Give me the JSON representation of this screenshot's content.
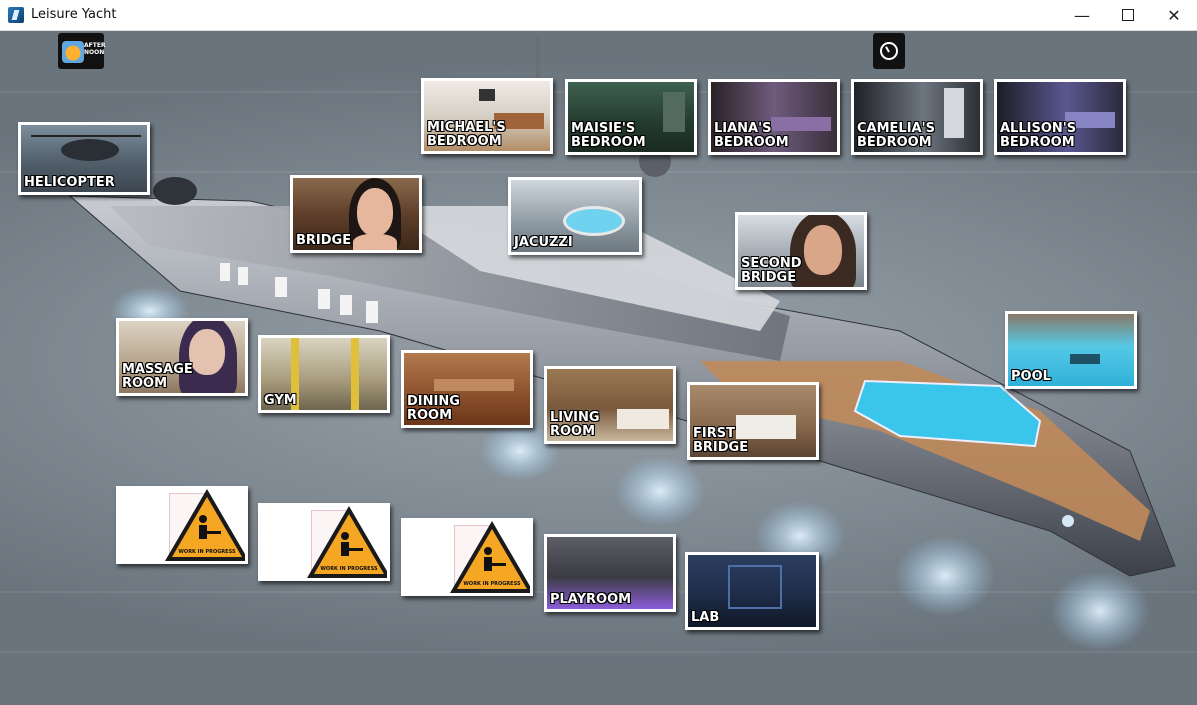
{
  "window": {
    "title": "Leisure Yacht"
  },
  "hud": {
    "time_label": "AFTER NOON",
    "time_icon": "sun-icon",
    "clock_icon": "clock-icon"
  },
  "locations": [
    {
      "id": "helicopter",
      "label": "HELICOPTER",
      "theme": "#5d6d7a"
    },
    {
      "id": "michaels-bedroom",
      "label": "MICHAEL'S\nBEDROOM",
      "theme": "#c9b59a"
    },
    {
      "id": "maisies-bedroom",
      "label": "MAISIE'S\nBEDROOM",
      "theme": "#2f4a3a"
    },
    {
      "id": "lianas-bedroom",
      "label": "LIANA'S\nBEDROOM",
      "theme": "#4b3d52"
    },
    {
      "id": "camelias-bedroom",
      "label": "CAMELIA'S\nBEDROOM",
      "theme": "#3b3f46"
    },
    {
      "id": "allisons-bedroom",
      "label": "ALLISON'S\nBEDROOM",
      "theme": "#3d3a58"
    },
    {
      "id": "bridge",
      "label": "BRIDGE",
      "theme": "#6a4a36"
    },
    {
      "id": "jacuzzi",
      "label": "JACUZZI",
      "theme": "#9aa7b0"
    },
    {
      "id": "second-bridge",
      "label": "SECOND\nBRIDGE",
      "theme": "#a9b0b6"
    },
    {
      "id": "massage-room",
      "label": "MASSAGE\nROOM",
      "theme": "#b7a995"
    },
    {
      "id": "gym",
      "label": "GYM",
      "theme": "#8e8468"
    },
    {
      "id": "dining-room",
      "label": "DINING\nROOM",
      "theme": "#8a4f2c"
    },
    {
      "id": "living-room",
      "label": "LIVING\nROOM",
      "theme": "#7a5a3d"
    },
    {
      "id": "first-bridge",
      "label": "FIRST\nBRIDGE",
      "theme": "#8a6a4c"
    },
    {
      "id": "pool",
      "label": "POOL",
      "theme": "#3fbfe0"
    },
    {
      "id": "playroom",
      "label": "PLAYROOM",
      "theme": "#4d4d55"
    },
    {
      "id": "lab",
      "label": "LAB",
      "theme": "#1f2d48"
    },
    {
      "id": "wip-1",
      "label": "WORK IN PROGRESS",
      "theme": "#f5a623"
    },
    {
      "id": "wip-2",
      "label": "WORK IN PROGRESS",
      "theme": "#f5a623"
    },
    {
      "id": "wip-3",
      "label": "WORK IN PROGRESS",
      "theme": "#f5a623"
    }
  ]
}
